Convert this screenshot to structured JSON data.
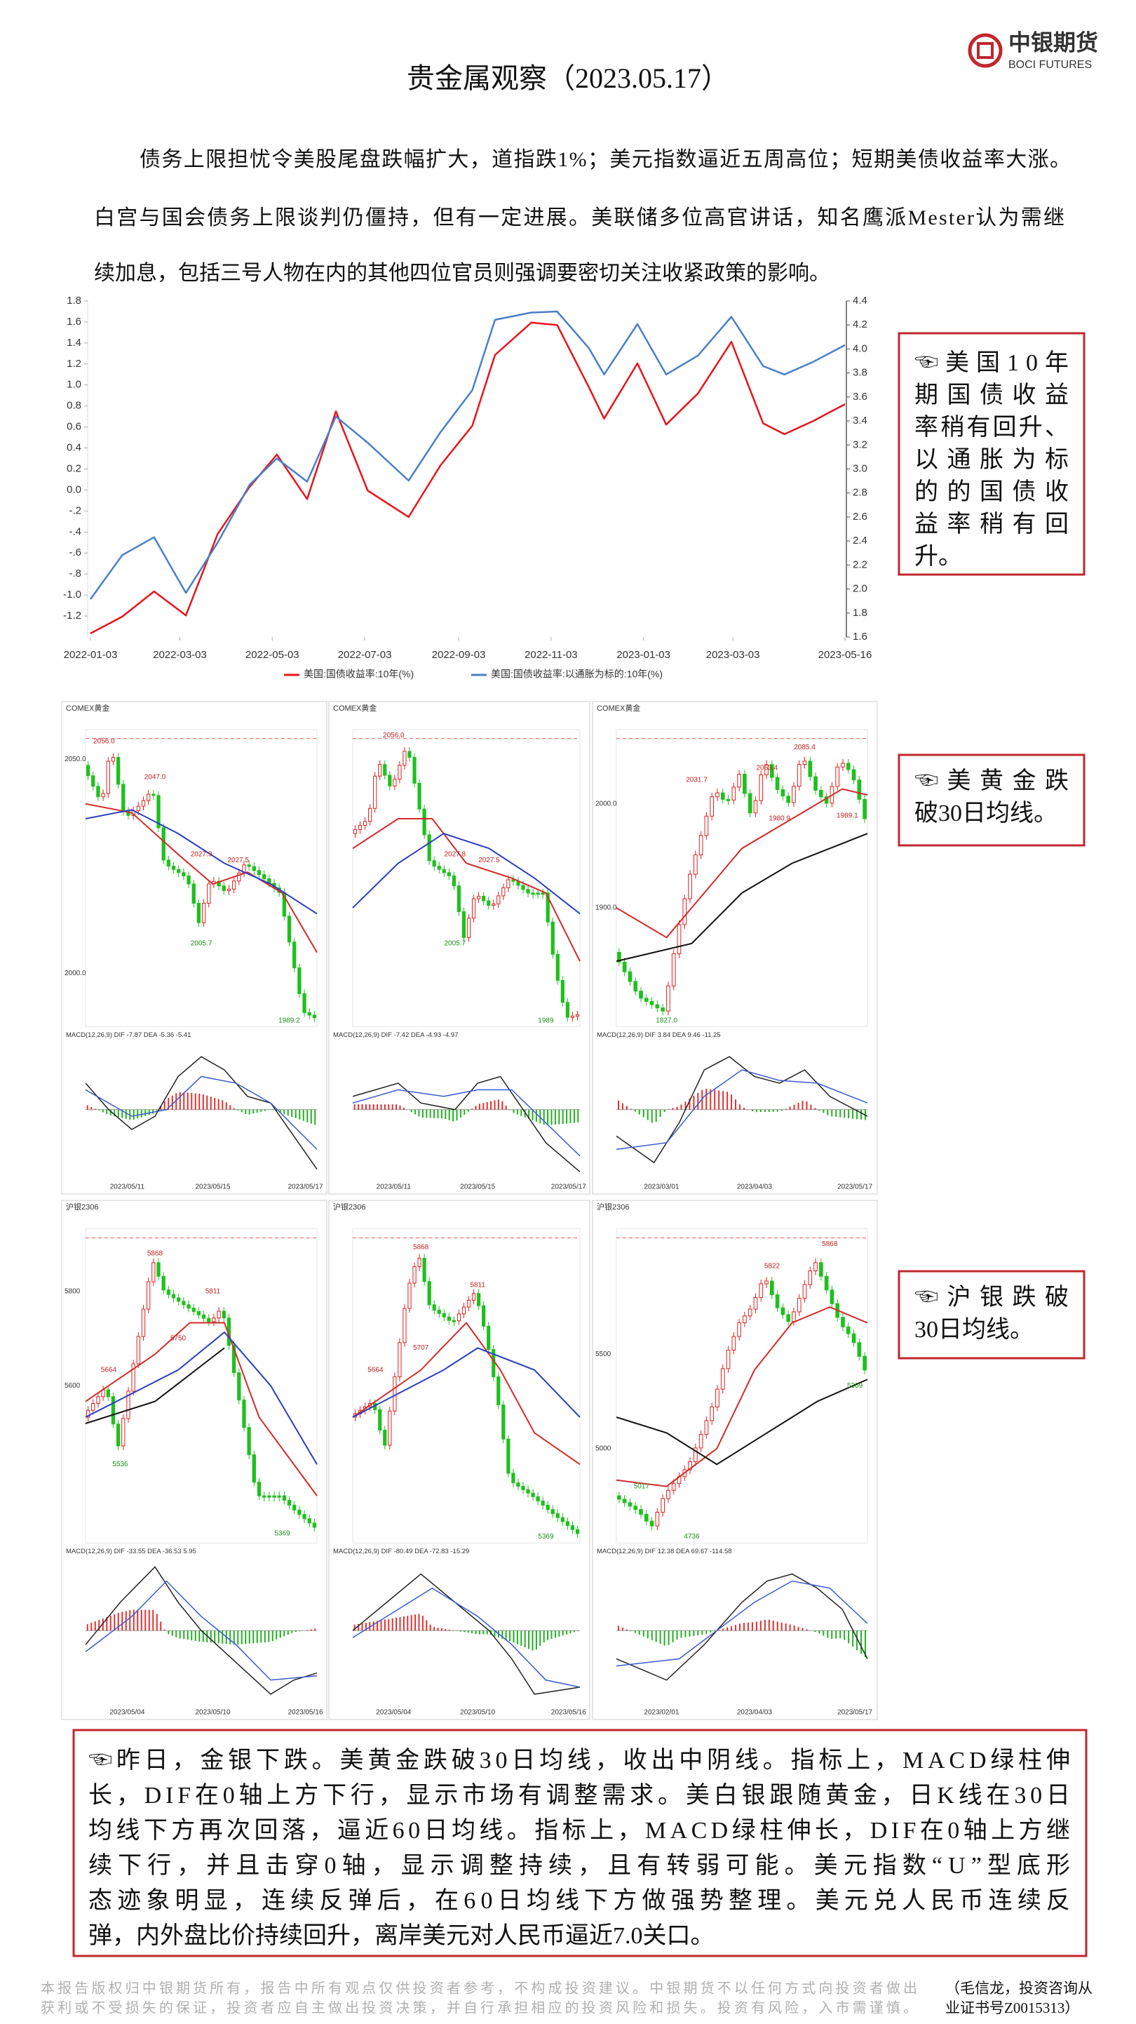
{
  "header": {
    "logo_cn": "中银期货",
    "logo_en": "BOCI FUTURES",
    "title": "贵金属观察（2023.05.17）"
  },
  "intro": [
    "债务上限担忧令美股尾盘跌幅扩大，道指跌1%；美元指数逼近五周高位；短期美债收益率大涨。",
    "白宫与国会债务上限谈判仍僵持，但有一定进展。美联储多位高官讲话，知名鹰派Mester认为需继",
    "续加息，包括三号人物在内的其他四位官员则强调要密切关注收紧政策的影响。"
  ],
  "chart_data": {
    "type": "line",
    "x": [
      "2022-01-03",
      "2022-01-24",
      "2022-02-14",
      "2022-03-07",
      "2022-03-28",
      "2022-04-18",
      "2022-05-06",
      "2022-05-26",
      "2022-06-14",
      "2022-07-05",
      "2022-08-01",
      "2022-08-22",
      "2022-09-12",
      "2022-09-27",
      "2022-10-21",
      "2022-11-07",
      "2022-11-28",
      "2022-12-08",
      "2022-12-30",
      "2023-01-18",
      "2023-02-08",
      "2023-03-02",
      "2023-03-23",
      "2023-04-06",
      "2023-04-25",
      "2023-05-16"
    ],
    "series": [
      {
        "name": "美国:国债收益率:10年(%)",
        "color": "#e8141c",
        "axis": "y2",
        "values": [
          1.63,
          1.77,
          1.98,
          1.78,
          2.46,
          2.85,
          3.12,
          2.75,
          3.48,
          2.82,
          2.6,
          3.03,
          3.36,
          3.95,
          4.22,
          4.2,
          3.68,
          3.42,
          3.88,
          3.37,
          3.63,
          4.06,
          3.38,
          3.29,
          3.4,
          3.54
        ]
      },
      {
        "name": "美国:国债收益率:以通胀为标的:10年(%)",
        "color": "#4a7fc8",
        "values": [
          -1.04,
          -0.62,
          -0.45,
          -0.98,
          -0.5,
          0.05,
          0.3,
          0.08,
          0.7,
          0.45,
          0.09,
          0.55,
          0.95,
          1.62,
          1.69,
          1.7,
          1.35,
          1.1,
          1.58,
          1.1,
          1.28,
          1.65,
          1.18,
          1.1,
          1.22,
          1.38
        ]
      }
    ],
    "xlim": [
      "2022-01-03",
      "2023-05-16"
    ],
    "xticks": [
      "2022-01-03",
      "2022-03-03",
      "2022-05-03",
      "2022-07-03",
      "2022-09-03",
      "2022-11-03",
      "2023-01-03",
      "2023-03-03",
      "2023-05-16"
    ],
    "ylim": [
      -1.4,
      1.8
    ],
    "yticks": [
      -1.2,
      {
        "value": -1.0,
        "label": "-1.0"
      },
      {
        "value": -0.8,
        "label": "-.8"
      },
      {
        "value": -0.6,
        "label": "-.6"
      },
      {
        "value": -0.4,
        "label": "-.4"
      },
      {
        "value": -0.2,
        "label": "-.2"
      },
      {
        "value": 0,
        "label": "0.0"
      },
      0.2,
      0.4,
      0.6,
      0.8,
      {
        "value": 1.0,
        "label": "1.0"
      },
      1.2,
      1.4,
      1.6,
      1.8
    ],
    "y2lim": [
      1.6,
      4.4
    ],
    "y2ticks": [
      1.6,
      1.8,
      {
        "value": 2.0,
        "label": "2.0"
      },
      2.2,
      2.4,
      2.6,
      2.8,
      {
        "value": 3.0,
        "label": "3.0"
      },
      3.2,
      3.4,
      3.6,
      3.8,
      {
        "value": 4.0,
        "label": "4.0"
      },
      4.2,
      4.4
    ]
  },
  "callouts": [
    [
      "☜美国10年",
      "期国债收益",
      "率稍有回升、",
      "以通胀为标",
      "的的国债收",
      "益率稍有回",
      "升。"
    ],
    [
      "☜美黄金跌",
      "破30日均线。"
    ],
    [
      "☜沪银跌破",
      "30日均线。"
    ]
  ],
  "panels": [
    {
      "title": "COMEX黄金",
      "labels": [
        "2056.0",
        "2047.0",
        "2027.9",
        "2027.5",
        "2005.7",
        "1989.2"
      ],
      "ticks": [
        "2050.0",
        "2000.0"
      ],
      "macd": "MACD(12,26,9)  DIF -7.87  DEA -5.36  -5.41",
      "dates": [
        "2023/05/11",
        "2023/05/15",
        "2023/05/17"
      ]
    },
    {
      "title": "COMEX黄金",
      "labels": [
        "2056.0",
        "2027.8",
        "2027.5",
        "2005.7",
        "1989"
      ],
      "ticks": [],
      "macd": "MACD(12,26,9)  DIF -7.42  DEA -4.93  -4.97",
      "dates": [
        "2023/05/11",
        "2023/05/15",
        "2023/05/17"
      ]
    },
    {
      "title": "COMEX黄金",
      "labels": [
        "2085.4",
        "2063.4",
        "2031.7",
        "1980.9",
        "1989.1",
        "1827.0"
      ],
      "ticks": [
        "2000.0",
        "1900.0"
      ],
      "macd": "MACD(12,26,9)  DIF 3.84  DEA 9.46  -11.25",
      "dates": [
        "2023/03/01",
        "2023/04/03",
        "2023/05/17"
      ]
    },
    {
      "title": "沪银2306",
      "labels": [
        "5868",
        "5811",
        "5750",
        "5664",
        "5536",
        "5369"
      ],
      "ticks": [
        "5800",
        "5600"
      ],
      "macd": "MACD(12,26,9)  DIF -33.55  DEA -36.53  5.95",
      "dates": [
        "2023/05/04",
        "2023/05/10",
        "2023/05/16"
      ]
    },
    {
      "title": "沪银2306",
      "labels": [
        "5868",
        "5811",
        "5707",
        "5664",
        "5369"
      ],
      "ticks": [],
      "macd": "MACD(12,26,9)  DIF -80.49  DEA -72.83  -15.29",
      "dates": [
        "2023/05/04",
        "2023/05/10",
        "2023/05/16"
      ]
    },
    {
      "title": "沪银2306",
      "labels": [
        "5868",
        "5822",
        "5017",
        "4736",
        "5369"
      ],
      "ticks": [
        "5500",
        "5000"
      ],
      "macd": "MACD(12,26,9)  DIF 12.38  DEA 69.67  -114.58",
      "dates": [
        "2023/02/01",
        "2023/04/03",
        "2023/05/17"
      ]
    }
  ],
  "summary": [
    "☜昨日，金银下跌。美黄金跌破30日均线，收出中阴线。指标上，MACD绿柱伸",
    "长，DIF在0轴上方下行，显示市场有调整需求。美白银跟随黄金，日K线在30日",
    "均线下方再次回落，逼近60日均线。指标上，MACD绿柱伸长，DIF在0轴上方继",
    "续下行，并且击穿0轴，显示调整持续，且有转弱可能。美元指数“U”型底形",
    "态迹象明显，连续反弹后，在60日均线下方做强势整理。美元兑人民币连续反",
    "弹，内外盘比价持续回升，离岸美元对人民币逼近7.0关口。"
  ],
  "footer": {
    "disclaimer": [
      "本报告版权归中银期货所有，报告中所有观点仅供投资者参考，不构成投资建议。中银期货不以任何方式向投资者做出",
      "获利或不受损失的保证，投资者应自主做出投资决策，并自行承担相应的投资风险和损失。投资有风险，入市需谨慎。"
    ],
    "author": [
      "（毛信龙，投资咨询从",
      "业证书号Z0015313）"
    ]
  }
}
